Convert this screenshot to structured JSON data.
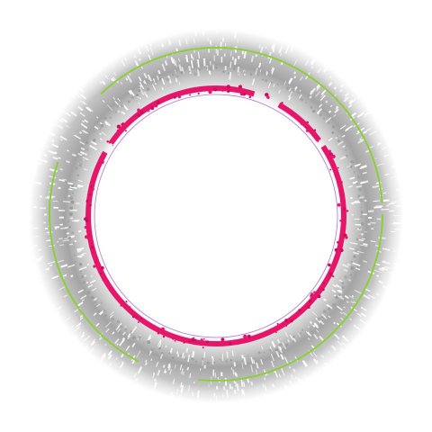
{
  "image": {
    "description_name": "circular-ring-frame",
    "colors": {
      "background": "#ffffff",
      "halo": "#9a9a9a",
      "halo_light": "#cfcfcf",
      "speckle": "#ffffff",
      "inner_ring": "#e6176a",
      "inner_ring_dark": "#c90f5a",
      "outer_ring": "#8ccf3a",
      "thin_ring": "#b07ad0"
    }
  }
}
